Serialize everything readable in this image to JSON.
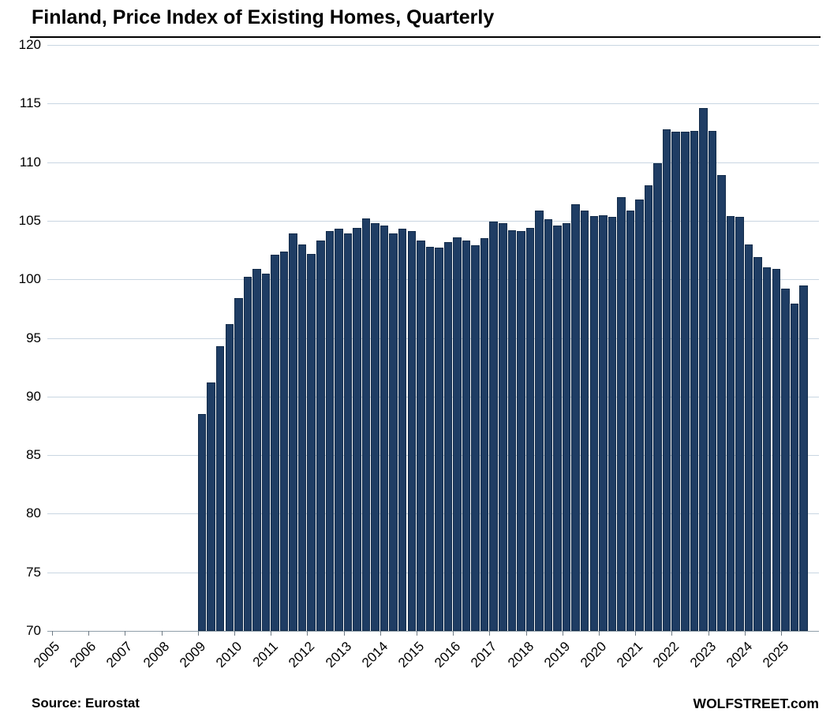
{
  "header": {
    "title": "Finland, Price Index of Existing Homes, Quarterly"
  },
  "footer": {
    "source": "Source: Eurostat",
    "watermark": "WOLFSTREET.com"
  },
  "chart_data": {
    "type": "bar",
    "title": "Finland, Price Index of Existing Homes, Quarterly",
    "xlabel": "",
    "ylabel": "",
    "ylim": [
      70,
      120
    ],
    "yticks": [
      70,
      75,
      80,
      85,
      90,
      95,
      100,
      105,
      110,
      115,
      120
    ],
    "xticks": [
      2005,
      2006,
      2007,
      2008,
      2009,
      2010,
      2011,
      2012,
      2013,
      2014,
      2015,
      2016,
      2017,
      2018,
      2019,
      2020,
      2021,
      2022,
      2023,
      2024,
      2025
    ],
    "grid": "horizontal",
    "legend": "none",
    "bar_color": "#1f3d64",
    "bar_border_color": "#132c4a",
    "gridline_color": "#c9d6e2",
    "data_start": "2009-Q1",
    "x": [
      "2009-Q1",
      "2009-Q2",
      "2009-Q3",
      "2009-Q4",
      "2010-Q1",
      "2010-Q2",
      "2010-Q3",
      "2010-Q4",
      "2011-Q1",
      "2011-Q2",
      "2011-Q3",
      "2011-Q4",
      "2012-Q1",
      "2012-Q2",
      "2012-Q3",
      "2012-Q4",
      "2013-Q1",
      "2013-Q2",
      "2013-Q3",
      "2013-Q4",
      "2014-Q1",
      "2014-Q2",
      "2014-Q3",
      "2014-Q4",
      "2015-Q1",
      "2015-Q2",
      "2015-Q3",
      "2015-Q4",
      "2016-Q1",
      "2016-Q2",
      "2016-Q3",
      "2016-Q4",
      "2017-Q1",
      "2017-Q2",
      "2017-Q3",
      "2017-Q4",
      "2018-Q1",
      "2018-Q2",
      "2018-Q3",
      "2018-Q4",
      "2019-Q1",
      "2019-Q2",
      "2019-Q3",
      "2019-Q4",
      "2020-Q1",
      "2020-Q2",
      "2020-Q3",
      "2020-Q4",
      "2021-Q1",
      "2021-Q2",
      "2021-Q3",
      "2021-Q4",
      "2022-Q1",
      "2022-Q2",
      "2022-Q3",
      "2022-Q4",
      "2023-Q1",
      "2023-Q2",
      "2023-Q3",
      "2023-Q4",
      "2024-Q1",
      "2024-Q2",
      "2024-Q3",
      "2024-Q4",
      "2025-Q1",
      "2025-Q2",
      "2025-Q3"
    ],
    "values": [
      88.5,
      91.2,
      94.3,
      96.2,
      98.4,
      100.2,
      100.9,
      100.5,
      102.1,
      102.4,
      103.9,
      103.0,
      102.2,
      103.3,
      104.1,
      104.3,
      103.9,
      104.4,
      105.2,
      104.8,
      104.6,
      103.9,
      104.3,
      104.1,
      103.3,
      102.8,
      102.7,
      103.2,
      103.6,
      103.3,
      102.9,
      103.5,
      104.9,
      104.8,
      104.2,
      104.1,
      104.4,
      105.9,
      105.1,
      104.6,
      104.8,
      106.4,
      105.9,
      105.4,
      105.5,
      105.3,
      107.0,
      105.9,
      106.8,
      108.0,
      109.9,
      112.8,
      112.6,
      112.6,
      112.7,
      114.6,
      112.7,
      108.9,
      105.4,
      105.3,
      103.0,
      101.9,
      101.0,
      100.9,
      99.2,
      97.9,
      99.5
    ]
  }
}
